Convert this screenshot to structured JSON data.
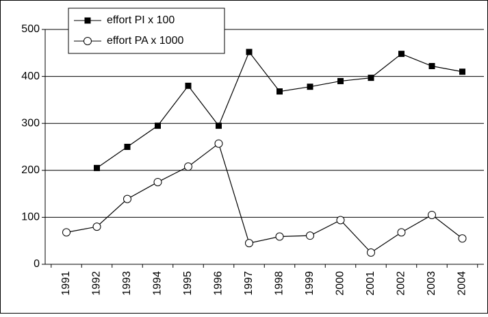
{
  "chart_data": {
    "type": "line",
    "categories": [
      "1991",
      "1992",
      "1993",
      "1994",
      "1995",
      "1996",
      "1997",
      "1998",
      "1999",
      "2000",
      "2001",
      "2002",
      "2003",
      "2004"
    ],
    "series": [
      {
        "name": "effort PI x 100",
        "color": "#000000",
        "marker": "square",
        "values": [
          null,
          205,
          250,
          295,
          380,
          295,
          452,
          368,
          378,
          390,
          397,
          448,
          422,
          410
        ]
      },
      {
        "name": "effort PA x 1000",
        "color": "#000000",
        "marker": "circle",
        "values": [
          68,
          80,
          139,
          175,
          208,
          257,
          45,
          59,
          61,
          94,
          25,
          68,
          105,
          55
        ]
      }
    ],
    "ylim": [
      0,
      500
    ],
    "yticks": [
      0,
      100,
      200,
      300,
      400,
      500
    ],
    "grid": true,
    "legend": "upper left"
  }
}
